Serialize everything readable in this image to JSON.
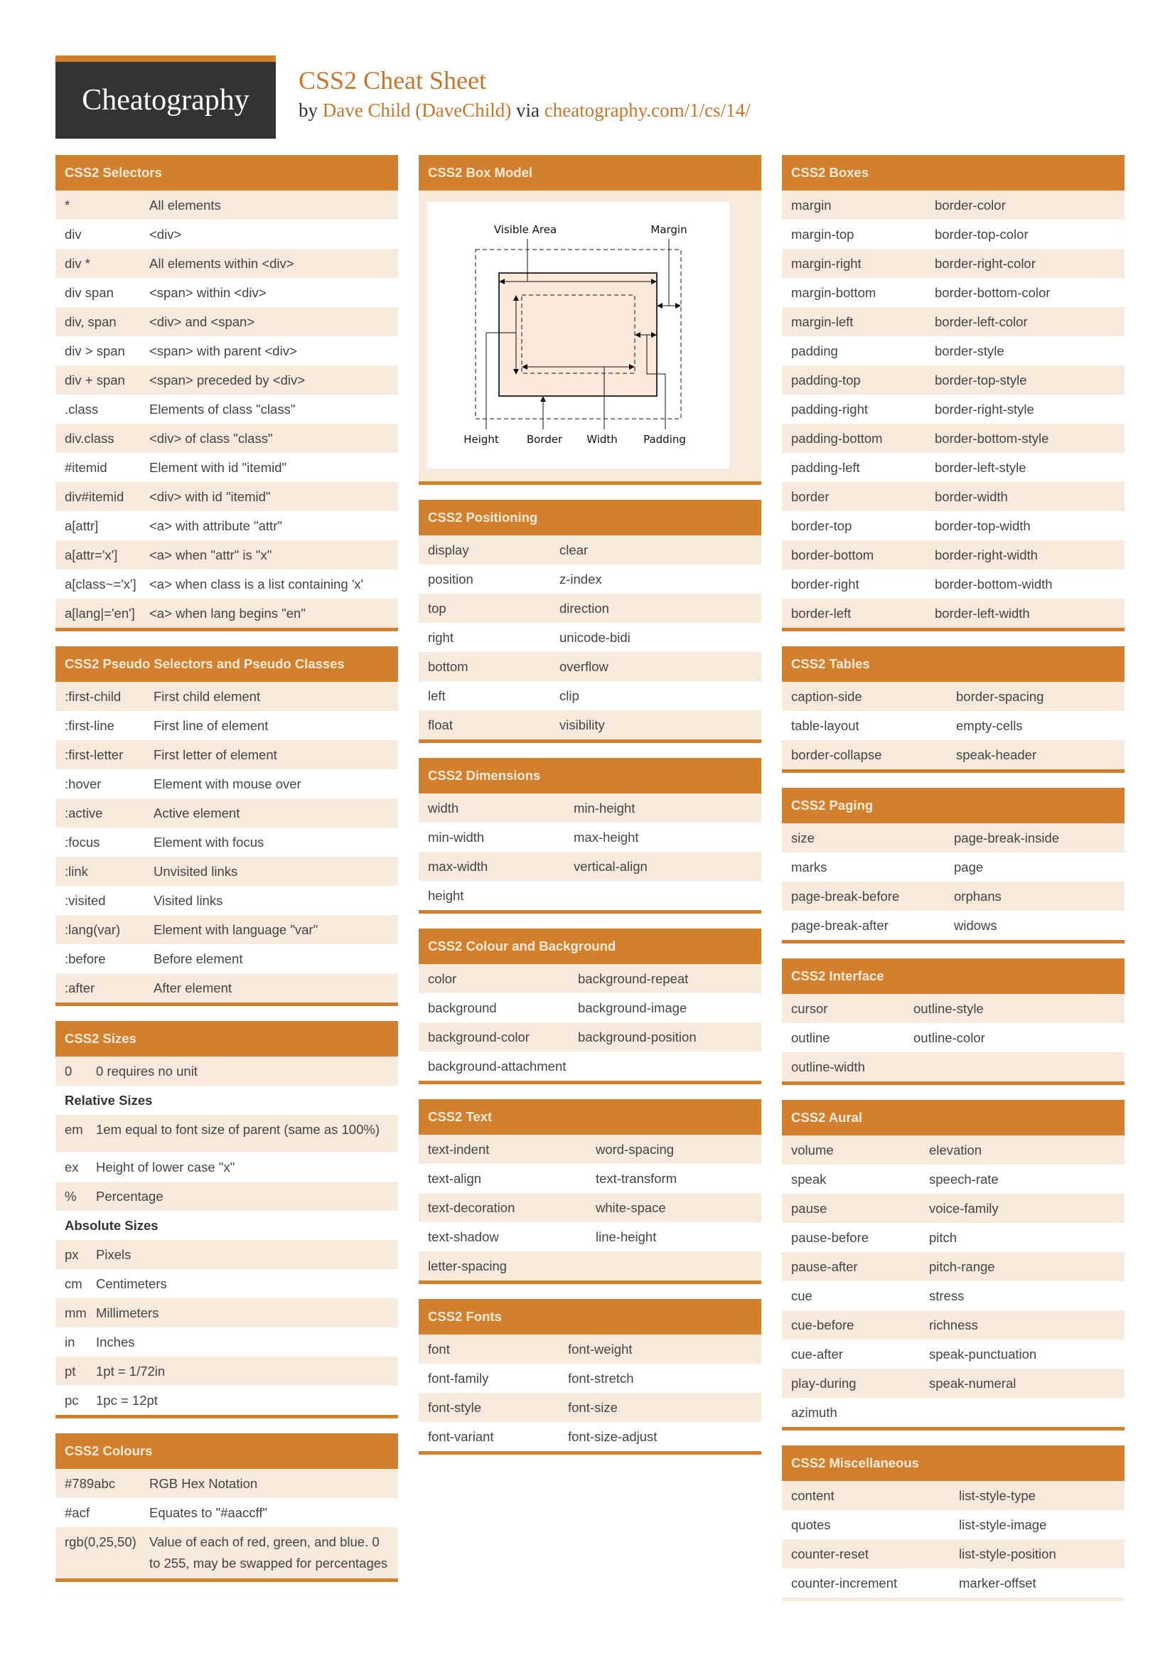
{
  "header": {
    "logo": "Cheatography",
    "title": "CSS2 Cheat Sheet",
    "by": "by",
    "author": "Dave Child (DaveChild)",
    "via": "via",
    "url": "cheatography.com/1/cs/14/"
  },
  "colors": {
    "accent": "#d27f2e",
    "row_shade": "#f7e9db",
    "logo_bg": "#333333"
  },
  "box_model": {
    "title": "CSS2 Box Model",
    "labels": {
      "visible_area": "Visible Area",
      "margin": "Margin",
      "height": "Height",
      "border": "Border",
      "width": "Width",
      "padding": "Padding"
    }
  },
  "columns": [
    [
      {
        "title": "CSS2 Selectors",
        "key_width": 132,
        "rows": [
          [
            "*",
            "All elements"
          ],
          [
            "div",
            "<div>"
          ],
          [
            "div *",
            "All elements within <div>"
          ],
          [
            "div span",
            "<span> within <div>"
          ],
          [
            "div, span",
            "<div> and <span>"
          ],
          [
            "div > span",
            "<span> with parent <div>"
          ],
          [
            "div + span",
            "<span> preceded by <div>"
          ],
          [
            ".class",
            "Elements of class \"class\""
          ],
          [
            "div.class",
            "<div> of class \"class\""
          ],
          [
            "#itemid",
            "Element with id \"itemid\""
          ],
          [
            "div#itemid",
            "<div> with id \"itemid\""
          ],
          [
            "a[attr]",
            "<a> with attribute \"attr\""
          ],
          [
            "a[attr='x']",
            "<a> when \"attr\" is \"x\""
          ],
          [
            "a[class~='x']",
            "<a> when class is a list containing 'x'"
          ],
          [
            "a[lang|='en']",
            "<a> when lang begins \"en\""
          ]
        ]
      },
      {
        "title": "CSS2 Pseudo Selectors and Pseudo Classes",
        "key_width": 138,
        "rows": [
          [
            ":first-child",
            "First child element"
          ],
          [
            ":first-line",
            "First line of element"
          ],
          [
            ":first-letter",
            "First letter of element"
          ],
          [
            ":hover",
            "Element with mouse over"
          ],
          [
            ":active",
            "Active element"
          ],
          [
            ":focus",
            "Element with focus"
          ],
          [
            ":link",
            "Unvisited links"
          ],
          [
            ":visited",
            "Visited links"
          ],
          [
            ":lang(var)",
            "Element with language \"var\""
          ],
          [
            ":before",
            "Before element"
          ],
          [
            ":after",
            "After element"
          ]
        ]
      },
      {
        "title": "CSS2 Sizes",
        "key_width": 57,
        "rows": [
          [
            "0",
            "0 requires no unit"
          ],
          [
            "Relative Sizes"
          ],
          [
            "em",
            "1em equal to font size of parent (same as 100%)"
          ],
          [
            "ex",
            "Height of lower case \"x\""
          ],
          [
            "%",
            "Percentage"
          ],
          [
            "Absolute Sizes"
          ],
          [
            "px",
            "Pixels"
          ],
          [
            "cm",
            "Centimeters"
          ],
          [
            "mm",
            "Millimeters"
          ],
          [
            "in",
            "Inches"
          ],
          [
            "pt",
            "1pt = 1/72in"
          ],
          [
            "pc",
            "1pc = 12pt"
          ]
        ]
      },
      {
        "title": "CSS2 Colours",
        "key_width": 132,
        "rows": [
          [
            "#789abc",
            "RGB Hex Notation"
          ],
          [
            "#acf",
            "Equates to \"#aaccff\""
          ],
          [
            "rgb(0,25,50)",
            "Value of each of red, green, and blue. 0 to 255, may be swapped for percentages"
          ]
        ]
      }
    ],
    [
      {
        "title": "CSS2 Box Model",
        "box": true
      },
      {
        "title": "CSS2 Positioning",
        "key_width": 198,
        "rows": [
          [
            "display",
            "clear"
          ],
          [
            "position",
            "z-index"
          ],
          [
            "top",
            "direction"
          ],
          [
            "right",
            "unicode-bidi"
          ],
          [
            "bottom",
            "overflow"
          ],
          [
            "left",
            "clip"
          ],
          [
            "float",
            "visibility"
          ]
        ]
      },
      {
        "title": "CSS2 Dimensions",
        "key_width": 218,
        "rows": [
          [
            "width",
            "min-height"
          ],
          [
            "min-width",
            "max-height"
          ],
          [
            "max-width",
            "vertical-align"
          ],
          [
            "height",
            ""
          ]
        ]
      },
      {
        "title": "CSS2 Colour and Background",
        "key_width": 224,
        "rows": [
          [
            "color",
            "background-repeat"
          ],
          [
            "background",
            "background-image"
          ],
          [
            "background-color",
            "background-position"
          ],
          [
            "background-attachment",
            ""
          ]
        ]
      },
      {
        "title": "CSS2 Text",
        "key_width": 249,
        "rows": [
          [
            "text-indent",
            "word-spacing"
          ],
          [
            "text-align",
            "text-transform"
          ],
          [
            "text-decoration",
            "white-space"
          ],
          [
            "text-shadow",
            "line-height"
          ],
          [
            "letter-spacing",
            ""
          ]
        ]
      },
      {
        "title": "CSS2 Fonts",
        "key_width": 210,
        "rows": [
          [
            "font",
            "font-weight"
          ],
          [
            "font-family",
            "font-stretch"
          ],
          [
            "font-style",
            "font-size"
          ],
          [
            "font-variant",
            "font-size-adjust"
          ]
        ]
      }
    ],
    [
      {
        "title": "CSS2 Boxes",
        "key_width": 215,
        "rows": [
          [
            "margin",
            "border-color"
          ],
          [
            "margin-top",
            "border-top-color"
          ],
          [
            "margin-right",
            "border-right-color"
          ],
          [
            "margin-bottom",
            "border-bottom-color"
          ],
          [
            "margin-left",
            "border-left-color"
          ],
          [
            "padding",
            "border-style"
          ],
          [
            "padding-top",
            "border-top-style"
          ],
          [
            "padding-right",
            "border-right-style"
          ],
          [
            "padding-bottom",
            "border-bottom-style"
          ],
          [
            "padding-left",
            "border-left-style"
          ],
          [
            "border",
            "border-width"
          ],
          [
            "border-top",
            "border-top-width"
          ],
          [
            "border-bottom",
            "border-right-width"
          ],
          [
            "border-right",
            "border-bottom-width"
          ],
          [
            "border-left",
            "border-left-width"
          ]
        ]
      },
      {
        "title": "CSS2 Tables",
        "key_width": 245,
        "rows": [
          [
            "caption-side",
            "border-spacing"
          ],
          [
            "table-layout",
            "empty-cells"
          ],
          [
            "border-collapse",
            "speak-header"
          ]
        ]
      },
      {
        "title": "CSS2 Paging",
        "key_width": 242,
        "rows": [
          [
            "size",
            "page-break-inside"
          ],
          [
            "marks",
            "page"
          ],
          [
            "page-break-before",
            "orphans"
          ],
          [
            "page-break-after",
            "widows"
          ]
        ]
      },
      {
        "title": "CSS2 Interface",
        "key_width": 185,
        "rows": [
          [
            "cursor",
            "outline-style"
          ],
          [
            "outline",
            "outline-color"
          ],
          [
            "outline-width",
            ""
          ]
        ]
      },
      {
        "title": "CSS2 Aural",
        "key_width": 207,
        "rows": [
          [
            "volume",
            "elevation"
          ],
          [
            "speak",
            "speech-rate"
          ],
          [
            "pause",
            "voice-family"
          ],
          [
            "pause-before",
            "pitch"
          ],
          [
            "pause-after",
            "pitch-range"
          ],
          [
            "cue",
            "stress"
          ],
          [
            "cue-before",
            "richness"
          ],
          [
            "cue-after",
            "speak-punctuation"
          ],
          [
            "play-during",
            "speak-numeral"
          ],
          [
            "azimuth",
            ""
          ]
        ]
      },
      {
        "title": "CSS2 Miscellaneous",
        "key_width": 249,
        "rows": [
          [
            "content",
            "list-style-type"
          ],
          [
            "quotes",
            "list-style-image"
          ],
          [
            "counter-reset",
            "list-style-position"
          ],
          [
            "counter-increment",
            "marker-offset"
          ],
          [
            "",
            ""
          ]
        ]
      }
    ]
  ]
}
